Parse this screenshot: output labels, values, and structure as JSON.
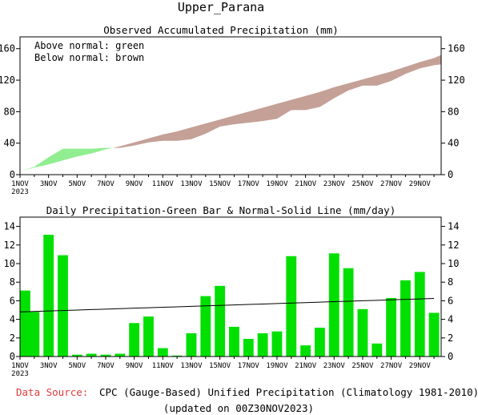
{
  "page": {
    "title": "Upper_Parana",
    "source_label": "Data Source:",
    "source_text": "CPC (Gauge-Based) Unified Precipitation (Climatology 1981-2010)",
    "updated": "(updated on 00Z30NOV2023)",
    "source_label_color": "#e03a3a"
  },
  "chart_data": [
    {
      "type": "area",
      "title": "Observed Accumulated Precipitation (mm)",
      "legend": [
        "Above normal: green",
        "Below normal: brown"
      ],
      "legend_placement": "top-left",
      "above_color": "#90ee90",
      "below_color": "#c4a096",
      "ylim": [
        0,
        175
      ],
      "yticks": [
        0,
        40,
        80,
        120,
        160
      ],
      "xlim": [
        1,
        30.5
      ],
      "xtick_positions": [
        1,
        3,
        5,
        7,
        9,
        11,
        13,
        15,
        17,
        19,
        21,
        23,
        25,
        27,
        29
      ],
      "xtick_labels": [
        "1NOV",
        "3NOV",
        "5NOV",
        "7NOV",
        "9NOV",
        "11NOV",
        "13NOV",
        "15NOV",
        "17NOV",
        "19NOV",
        "21NOV",
        "23NOV",
        "25NOV",
        "27NOV",
        "29NOV"
      ],
      "year_label": "2023",
      "x": [
        1,
        2,
        3,
        4,
        5,
        6,
        7,
        8,
        9,
        10,
        11,
        12,
        13,
        14,
        15,
        16,
        17,
        18,
        19,
        20,
        21,
        22,
        23,
        24,
        25,
        26,
        27,
        28,
        29,
        30,
        30.5
      ],
      "observed": [
        4,
        10,
        22,
        33,
        33,
        33,
        34,
        34,
        37,
        41,
        43,
        43,
        45,
        52,
        61,
        64,
        66,
        68,
        71,
        82,
        82,
        86,
        97,
        107,
        113,
        113,
        119,
        128,
        135,
        139,
        140
      ],
      "normal": [
        4,
        9,
        13,
        18,
        23,
        27,
        32,
        36,
        41,
        46,
        51,
        55,
        60,
        65,
        70,
        75,
        80,
        85,
        90,
        95,
        100,
        105,
        111,
        116,
        121,
        126,
        131,
        137,
        143,
        148,
        152
      ]
    },
    {
      "type": "bar",
      "title": "Daily Precipitation-Green Bar & Normal-Solid Line (mm/day)",
      "bar_color": "#00e000",
      "line_color": "#000000",
      "ylim": [
        0,
        15
      ],
      "yticks": [
        0,
        2,
        4,
        6,
        8,
        10,
        12,
        14
      ],
      "xtick_positions": [
        1,
        3,
        5,
        7,
        9,
        11,
        13,
        15,
        17,
        19,
        21,
        23,
        25,
        27,
        29
      ],
      "xtick_labels": [
        "1NOV",
        "3NOV",
        "5NOV",
        "7NOV",
        "9NOV",
        "11NOV",
        "13NOV",
        "15NOV",
        "17NOV",
        "19NOV",
        "21NOV",
        "23NOV",
        "25NOV",
        "27NOV",
        "29NOV"
      ],
      "year_label": "2023",
      "days": [
        1,
        2,
        3,
        4,
        5,
        6,
        7,
        8,
        9,
        10,
        11,
        12,
        13,
        14,
        15,
        16,
        17,
        18,
        19,
        20,
        21,
        22,
        23,
        24,
        25,
        26,
        27,
        28,
        29,
        30
      ],
      "values": [
        7.1,
        4.8,
        13.1,
        10.9,
        0.2,
        0.3,
        0.2,
        0.3,
        3.6,
        4.3,
        0.9,
        0.1,
        2.5,
        6.5,
        7.6,
        3.2,
        1.9,
        2.5,
        2.7,
        10.8,
        1.2,
        3.1,
        11.1,
        9.5,
        5.1,
        1.4,
        6.3,
        8.2,
        9.1,
        4.7
      ],
      "normal": [
        4.8,
        4.85,
        4.9,
        4.95,
        5.0,
        5.05,
        5.1,
        5.15,
        5.2,
        5.25,
        5.3,
        5.35,
        5.4,
        5.45,
        5.5,
        5.55,
        5.6,
        5.65,
        5.7,
        5.75,
        5.8,
        5.85,
        5.9,
        5.95,
        6.0,
        6.05,
        6.1,
        6.15,
        6.2,
        6.25
      ]
    }
  ]
}
